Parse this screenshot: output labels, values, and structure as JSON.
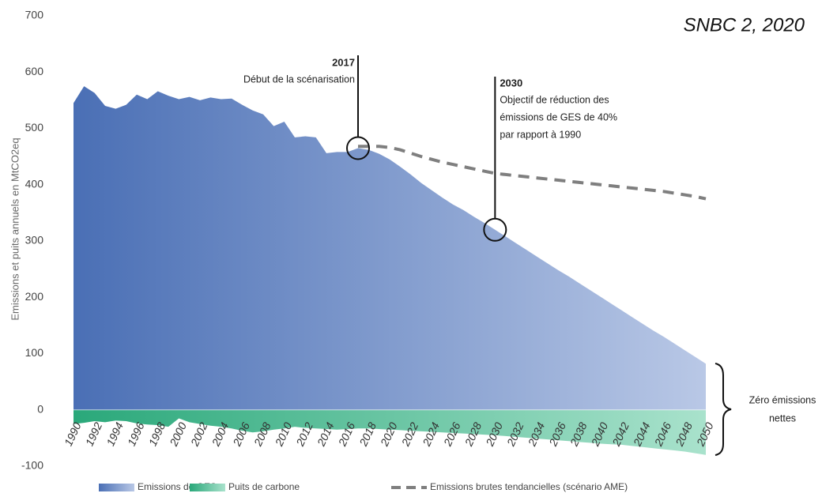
{
  "chart_data": {
    "type": "area",
    "title": "SNBC 2, 2020",
    "y_label": "Emissions et puits annuels en MtCO2eq",
    "xlim": [
      1990,
      2050
    ],
    "xticks": [
      1990,
      1992,
      1994,
      1996,
      1998,
      2000,
      2002,
      2004,
      2006,
      2008,
      2010,
      2012,
      2014,
      2016,
      2018,
      2020,
      2022,
      2024,
      2026,
      2028,
      2030,
      2032,
      2034,
      2036,
      2038,
      2040,
      2042,
      2044,
      2046,
      2048,
      2050
    ],
    "ylim": [
      -100,
      700
    ],
    "yticks": [
      -100,
      0,
      100,
      200,
      300,
      400,
      500,
      600,
      700
    ],
    "grid": false,
    "legend": "bottom",
    "x": [
      1990,
      1991,
      1992,
      1993,
      1994,
      1995,
      1996,
      1997,
      1998,
      1999,
      2000,
      2001,
      2002,
      2003,
      2004,
      2005,
      2006,
      2007,
      2008,
      2009,
      2010,
      2011,
      2012,
      2013,
      2014,
      2015,
      2016,
      2017,
      2018,
      2019,
      2020,
      2021,
      2022,
      2023,
      2024,
      2025,
      2026,
      2027,
      2028,
      2029,
      2030,
      2031,
      2032,
      2033,
      2034,
      2035,
      2036,
      2037,
      2038,
      2039,
      2040,
      2041,
      2042,
      2043,
      2044,
      2045,
      2046,
      2047,
      2048,
      2049,
      2050
    ],
    "series": [
      {
        "name": "Emissions de GES",
        "color": "#4a6fb5",
        "color_end": "#b9c8e6",
        "style": "area",
        "values": [
          545,
          575,
          563,
          540,
          535,
          542,
          560,
          552,
          566,
          558,
          552,
          556,
          550,
          555,
          552,
          553,
          542,
          532,
          525,
          504,
          512,
          484,
          486,
          484,
          456,
          458,
          458,
          465,
          462,
          455,
          445,
          432,
          418,
          403,
          390,
          377,
          365,
          355,
          343,
          332,
          320,
          308,
          296,
          284,
          272,
          260,
          248,
          237,
          225,
          213,
          201,
          189,
          177,
          165,
          153,
          141,
          130,
          118,
          106,
          94,
          82
        ]
      },
      {
        "name": "Puits de carbone",
        "color": "#2aa87a",
        "color_end": "#a9e2cc",
        "style": "area",
        "values": [
          -25,
          -23,
          -20,
          -22,
          -19,
          -20,
          -24,
          -26,
          -27,
          -30,
          -15,
          -22,
          -25,
          -28,
          -30,
          -33,
          -37,
          -40,
          -38,
          -35,
          -33,
          -30,
          -32,
          -33,
          -34,
          -35,
          -34,
          -33,
          -33,
          -34,
          -35,
          -36,
          -37,
          -38,
          -39,
          -40,
          -41,
          -42,
          -43,
          -44,
          -45,
          -46.5,
          -48,
          -49.5,
          -51,
          -52.5,
          -54,
          -55.5,
          -57,
          -58.5,
          -60,
          -61,
          -62,
          -64,
          -66,
          -68,
          -70,
          -72,
          -74,
          -77,
          -80
        ]
      },
      {
        "name": "Emissions brutes tendancielles (scénario AME)",
        "color": "#7f7f7f",
        "style": "dashed",
        "values": [
          null,
          null,
          null,
          null,
          null,
          null,
          null,
          null,
          null,
          null,
          null,
          null,
          null,
          null,
          null,
          null,
          null,
          null,
          null,
          null,
          null,
          null,
          null,
          null,
          null,
          null,
          null,
          468,
          468,
          468,
          466,
          462,
          456,
          450,
          445,
          440,
          436,
          432,
          428,
          424,
          420,
          418,
          416,
          414,
          412,
          410,
          408,
          406,
          404,
          402,
          400,
          398,
          396,
          394,
          392,
          390,
          388,
          385,
          382,
          379,
          375
        ]
      }
    ],
    "annotations": [
      {
        "year": 2017,
        "text": [
          "Début de la scénarisation"
        ]
      },
      {
        "year": 2030,
        "text": [
          "Objectif de réduction des",
          "émissions de GES de 40%",
          "par rapport à 1990"
        ]
      }
    ],
    "brace_label": [
      "Zéro émissions",
      "nettes"
    ]
  }
}
